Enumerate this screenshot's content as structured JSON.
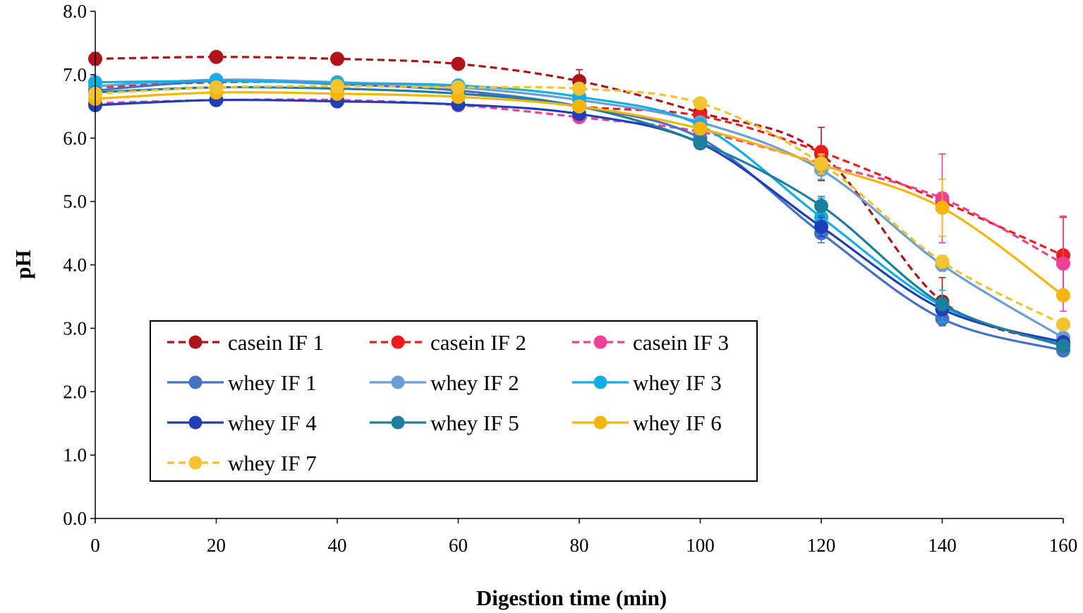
{
  "chart_data": {
    "type": "line",
    "title": "",
    "xlabel": "Digestion time (min)",
    "ylabel": "pH",
    "xlim": [
      0,
      160
    ],
    "ylim": [
      0,
      8
    ],
    "x_ticks": [
      "0",
      "20",
      "40",
      "60",
      "80",
      "100",
      "120",
      "140",
      "160"
    ],
    "y_ticks": [
      "0.0",
      "1.0",
      "2.0",
      "3.0",
      "4.0",
      "5.0",
      "6.0",
      "7.0",
      "8.0"
    ],
    "x": [
      0,
      20,
      40,
      60,
      80,
      100,
      120,
      140,
      160
    ],
    "grid": false,
    "legend_position": "bottom-left",
    "series": [
      {
        "name": "casein IF 1",
        "color": "#b01418",
        "dash": true,
        "values": [
          7.25,
          7.28,
          7.25,
          7.17,
          6.9,
          6.4,
          5.75,
          3.42,
          2.75
        ],
        "errors": [
          0.1,
          0.03,
          0.05,
          0.08,
          0.18,
          0.08,
          0.42,
          0.38,
          0.05
        ]
      },
      {
        "name": "casein IF 2",
        "color": "#ee1c1c",
        "dash": true,
        "values": [
          6.8,
          6.88,
          6.87,
          6.75,
          6.5,
          6.35,
          5.78,
          5.0,
          4.15
        ],
        "errors": [
          0.04,
          0.03,
          0.03,
          0.05,
          0.05,
          0.06,
          0.1,
          0.1,
          0.6
        ]
      },
      {
        "name": "casein IF 3",
        "color": "#ef3f96",
        "dash": true,
        "values": [
          6.55,
          6.6,
          6.6,
          6.52,
          6.33,
          6.1,
          5.6,
          5.05,
          4.02
        ],
        "errors": [
          0.05,
          0.03,
          0.03,
          0.05,
          0.05,
          0.06,
          0.1,
          0.7,
          0.75
        ]
      },
      {
        "name": "whey IF 1",
        "color": "#4472c4",
        "dash": false,
        "values": [
          6.75,
          6.9,
          6.85,
          6.75,
          6.5,
          6.0,
          4.5,
          3.15,
          2.65
        ],
        "errors": [
          0.05,
          0.03,
          0.03,
          0.05,
          0.05,
          0.06,
          0.15,
          0.1,
          0.05
        ]
      },
      {
        "name": "whey IF 2",
        "color": "#6a9fd6",
        "dash": false,
        "values": [
          6.82,
          6.92,
          6.88,
          6.8,
          6.6,
          6.25,
          5.5,
          4.0,
          2.85
        ],
        "errors": [
          0.05,
          0.03,
          0.03,
          0.05,
          0.05,
          0.06,
          0.15,
          0.1,
          0.05
        ]
      },
      {
        "name": "whey IF 3",
        "color": "#13aee6",
        "dash": false,
        "values": [
          6.88,
          6.9,
          6.87,
          6.83,
          6.65,
          6.2,
          4.75,
          3.35,
          2.75
        ],
        "errors": [
          0.05,
          0.03,
          0.03,
          0.05,
          0.05,
          0.06,
          0.3,
          0.25,
          0.05
        ]
      },
      {
        "name": "whey IF 4",
        "color": "#1f3fb8",
        "dash": false,
        "values": [
          6.52,
          6.6,
          6.58,
          6.53,
          6.38,
          5.92,
          4.6,
          3.3,
          2.78
        ],
        "errors": [
          0.05,
          0.03,
          0.03,
          0.05,
          0.05,
          0.06,
          0.15,
          0.1,
          0.05
        ]
      },
      {
        "name": "whey IF 5",
        "color": "#1c7fa0",
        "dash": false,
        "values": [
          6.72,
          6.8,
          6.78,
          6.7,
          6.5,
          5.93,
          4.93,
          3.38,
          2.72
        ],
        "errors": [
          0.05,
          0.03,
          0.03,
          0.05,
          0.05,
          0.06,
          0.15,
          0.1,
          0.05
        ]
      },
      {
        "name": "whey IF 6",
        "color": "#f5b50d",
        "dash": false,
        "values": [
          6.62,
          6.72,
          6.7,
          6.65,
          6.5,
          6.15,
          5.58,
          4.9,
          3.52
        ],
        "errors": [
          0.05,
          0.03,
          0.03,
          0.05,
          0.05,
          0.06,
          0.15,
          0.45,
          0.05
        ]
      },
      {
        "name": "whey IF 7",
        "color": "#f4c22e",
        "dash": true,
        "values": [
          6.7,
          6.8,
          6.82,
          6.8,
          6.78,
          6.55,
          5.6,
          4.05,
          3.06
        ],
        "errors": [
          0.05,
          0.03,
          0.03,
          0.05,
          0.05,
          0.06,
          0.15,
          0.1,
          0.05
        ]
      }
    ]
  }
}
